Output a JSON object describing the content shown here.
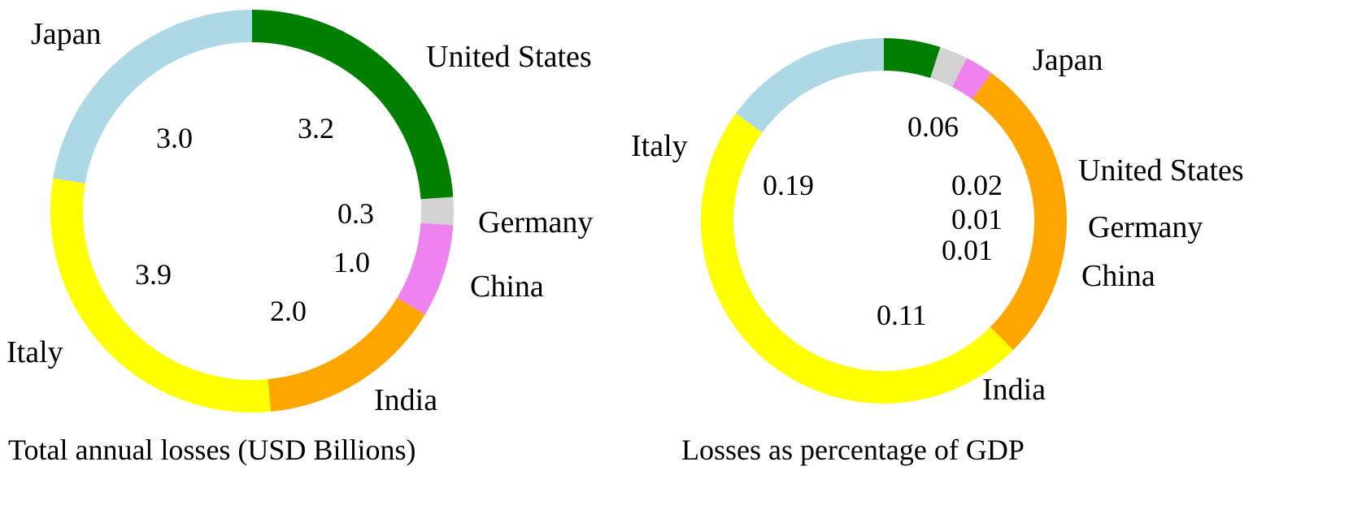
{
  "colors": {
    "United States": "#007f00",
    "Germany": "#d3d3d3",
    "China": "#ee82ee",
    "India": "#ffa500",
    "Italy": "#ffff00",
    "Japan": "#add8e6"
  },
  "chart_data": [
    {
      "type": "pie",
      "title": "Total annual losses (USD Billions)",
      "categories": [
        "United States",
        "Germany",
        "China",
        "India",
        "Italy",
        "Japan"
      ],
      "values": [
        3.2,
        0.3,
        1.0,
        2.0,
        3.9,
        3.0
      ],
      "value_labels": [
        "3.2",
        "0.3",
        "1.0",
        "2.0",
        "3.9",
        "3.0"
      ]
    },
    {
      "type": "pie",
      "title": "Losses as percentage of GDP",
      "categories": [
        "United States",
        "Germany",
        "China",
        "India",
        "Italy",
        "Japan"
      ],
      "values": [
        0.02,
        0.01,
        0.01,
        0.11,
        0.19,
        0.06
      ],
      "value_labels": [
        "0.02",
        "0.01",
        "0.01",
        "0.11",
        "0.19",
        "0.06"
      ]
    }
  ]
}
